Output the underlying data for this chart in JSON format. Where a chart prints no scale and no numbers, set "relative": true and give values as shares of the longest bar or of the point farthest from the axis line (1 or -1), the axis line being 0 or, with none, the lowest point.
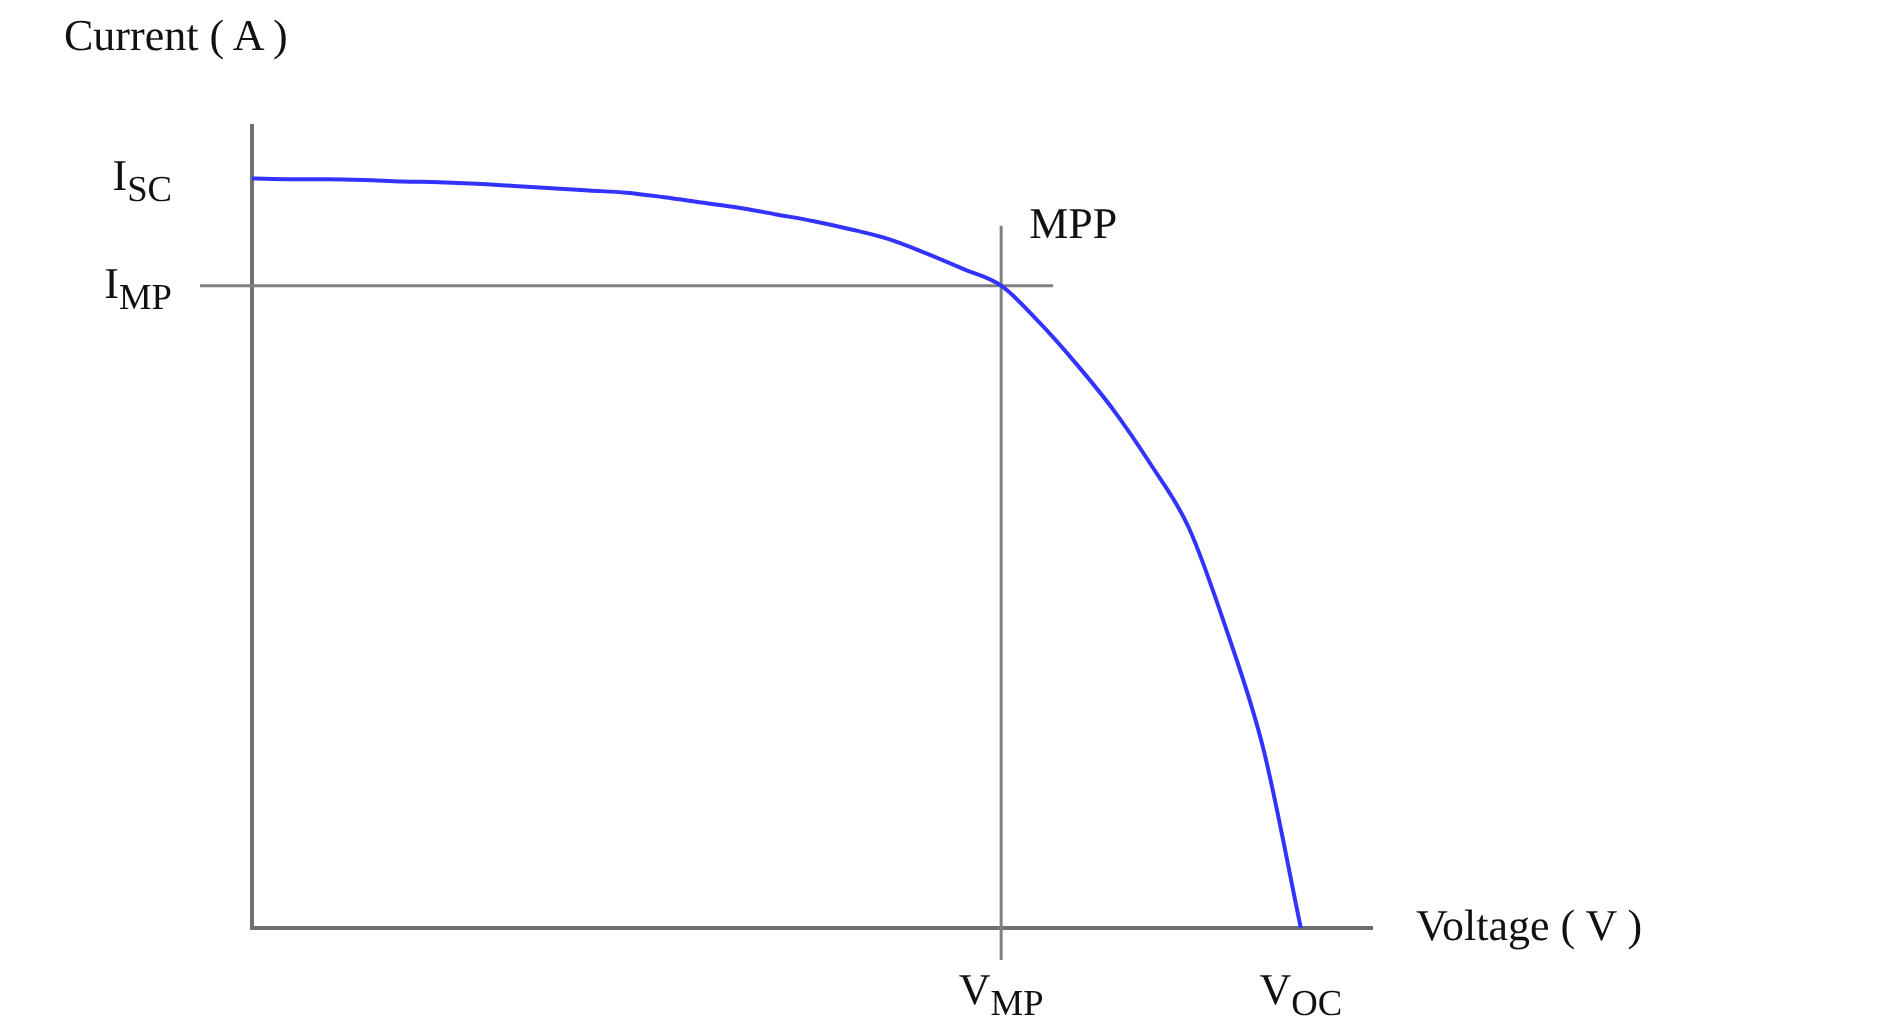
{
  "chart_data": {
    "type": "line",
    "xlabel": "Voltage  ( V )",
    "ylabel": "Current ( A )",
    "relative": true,
    "categories": [
      null,
      null,
      null,
      null,
      null,
      null,
      null,
      null,
      null,
      null,
      null,
      null,
      null,
      null,
      null,
      null,
      null,
      null,
      null,
      null,
      "V$_{MP}$",
      null,
      null,
      null,
      null,
      null,
      null,
      null,
      "V$_{OC}$"
    ],
    "series": [
      {
        "color": "#3333ff",
        "values": [
          1,
          0.999,
          0.999,
          0.998,
          0.996,
          0.995,
          0.993,
          0.99,
          0.987,
          0.984,
          0.981,
          0.975,
          0.968,
          0.961,
          0.952,
          0.943,
          0.932,
          0.919,
          0.9,
          0.879,
          0.857,
          0.809,
          0.753,
          0.691,
          0.618,
          0.535,
          0.4,
          0.239,
          0
        ]
      }
    ],
    "ref_lines": [
      {
        "axis": "y",
        "value": 0.857,
        "label": "I$_{MP}$",
        "color": "#808080"
      },
      {
        "axis": "x",
        "value": "V$_{MP}$",
        "color": "#808080"
      }
    ],
    "annotations": [
      "I$_{SC}$",
      {
        "text": "MPP",
        "x": "V$_{MP}$",
        "y": 0.857
      }
    ],
    "grid": false,
    "legend": false,
    "marker": "none",
    "line_style": "solid"
  }
}
